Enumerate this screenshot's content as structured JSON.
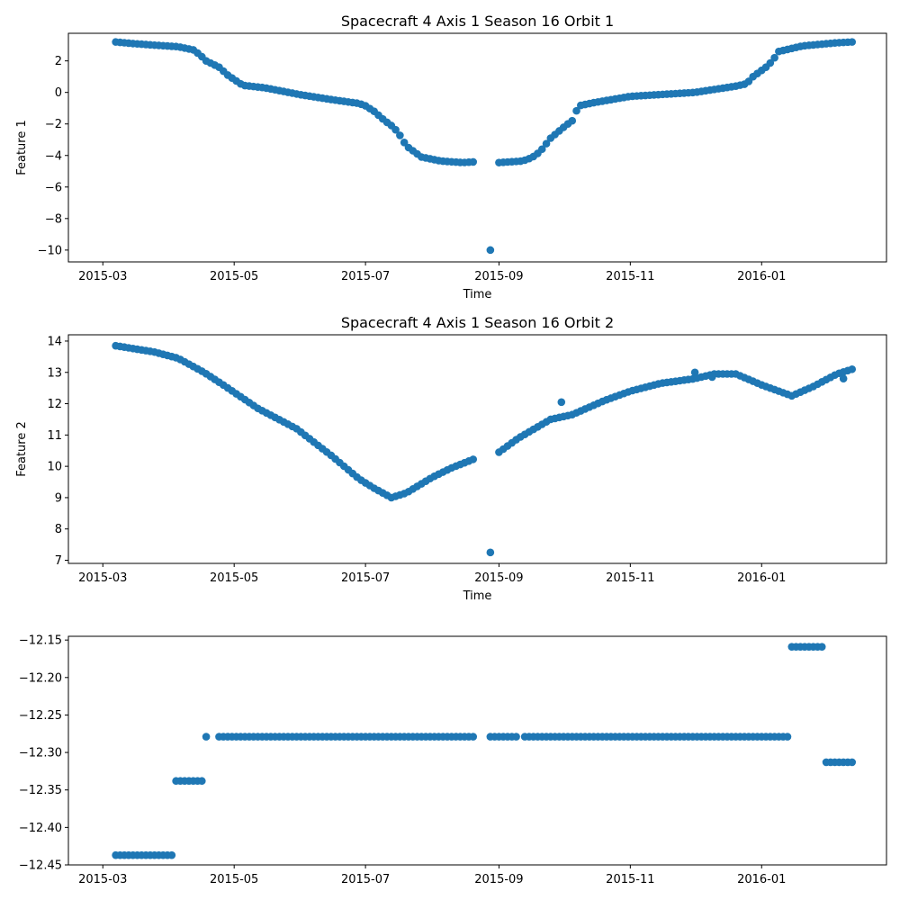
{
  "chart_data": [
    {
      "type": "scatter",
      "title": "Spacecraft 4 Axis 1 Season 16 Orbit 1",
      "xlabel": "Time",
      "ylabel": "Feature 1",
      "xlim": [
        "2015-02-13",
        "2016-02-28"
      ],
      "ylim": [
        -10.75,
        3.75
      ],
      "x_ticks": [
        "2015-03-01",
        "2015-05-01",
        "2015-07-01",
        "2015-09-01",
        "2015-11-01",
        "2016-01-01"
      ],
      "x_tick_labels": [
        "2015-03",
        "2015-05",
        "2015-07",
        "2015-09",
        "2015-11",
        "2016-01"
      ],
      "y_ticks": [
        2,
        0,
        -2,
        -4,
        -6,
        -8,
        -10
      ],
      "y_tick_labels": [
        "2",
        "0",
        "−2",
        "−4",
        "−6",
        "−8",
        "−10"
      ],
      "color": "#1f77b4",
      "series": [
        {
          "x_anchors": [
            "2015-03-07",
            "2015-03-15",
            "2015-03-25",
            "2015-04-05",
            "2015-04-12",
            "2015-04-15",
            "2015-04-18",
            "2015-04-24",
            "2015-04-28",
            "2015-05-05",
            "2015-05-15",
            "2015-06-01",
            "2015-06-15",
            "2015-06-28",
            "2015-07-01",
            "2015-07-05",
            "2015-07-10",
            "2015-07-13",
            "2015-07-16",
            "2015-07-20",
            "2015-07-27",
            "2015-08-05",
            "2015-08-15",
            "2015-08-21"
          ],
          "y_anchors": [
            3.2,
            3.1,
            3.0,
            2.9,
            2.7,
            2.4,
            2.0,
            1.6,
            1.1,
            0.45,
            0.3,
            -0.15,
            -0.45,
            -0.7,
            -0.85,
            -1.2,
            -1.8,
            -2.1,
            -2.5,
            -3.4,
            -4.1,
            -4.35,
            -4.45,
            -4.4
          ],
          "step_days": 2
        },
        {
          "x_anchors": [
            "2015-09-01",
            "2015-09-12",
            "2015-09-15",
            "2015-09-18",
            "2015-09-21",
            "2015-09-25",
            "2015-10-02",
            "2015-10-05",
            "2015-10-08",
            "2015-10-15",
            "2015-11-01",
            "2015-12-01",
            "2015-12-20",
            "2015-12-25",
            "2015-12-28",
            "2016-01-03",
            "2016-01-06",
            "2016-01-09",
            "2016-01-20",
            "2016-02-05",
            "2016-02-12"
          ],
          "y_anchors": [
            -4.45,
            -4.35,
            -4.2,
            -4.0,
            -3.6,
            -2.9,
            -2.1,
            -1.8,
            -0.85,
            -0.65,
            -0.25,
            0.0,
            0.4,
            0.55,
            1.0,
            1.6,
            2.0,
            2.6,
            2.95,
            3.15,
            3.2
          ],
          "step_days": 2
        },
        {
          "x": [
            "2015-08-28"
          ],
          "y": [
            -10.0
          ]
        }
      ]
    },
    {
      "type": "scatter",
      "title": "Spacecraft 4 Axis 1 Season 16 Orbit 2",
      "xlabel": "Time",
      "ylabel": "Feature 2",
      "xlim": [
        "2015-02-13",
        "2016-02-28"
      ],
      "ylim": [
        6.9,
        14.2
      ],
      "x_ticks": [
        "2015-03-01",
        "2015-05-01",
        "2015-07-01",
        "2015-09-01",
        "2015-11-01",
        "2016-01-01"
      ],
      "x_tick_labels": [
        "2015-03",
        "2015-05",
        "2015-07",
        "2015-09",
        "2015-11",
        "2016-01"
      ],
      "y_ticks": [
        14,
        13,
        12,
        11,
        10,
        9,
        8,
        7
      ],
      "y_tick_labels": [
        "14",
        "13",
        "12",
        "11",
        "10",
        "9",
        "8",
        "7"
      ],
      "color": "#1f77b4",
      "series": [
        {
          "x_anchors": [
            "2015-03-07",
            "2015-03-25",
            "2015-04-05",
            "2015-04-17",
            "2015-04-27",
            "2015-05-12",
            "2015-05-30",
            "2015-06-15",
            "2015-06-28",
            "2015-07-05",
            "2015-07-13",
            "2015-07-20",
            "2015-08-01",
            "2015-08-10",
            "2015-08-21"
          ],
          "y_anchors": [
            13.85,
            13.65,
            13.45,
            13.0,
            12.55,
            11.85,
            11.2,
            10.35,
            9.6,
            9.3,
            9.0,
            9.15,
            9.65,
            9.95,
            10.25
          ],
          "step_days": 2
        },
        {
          "x_anchors": [
            "2015-09-01",
            "2015-09-10",
            "2015-09-25",
            "2015-10-05",
            "2015-10-20",
            "2015-11-01",
            "2015-11-15",
            "2015-12-01",
            "2015-12-10",
            "2015-12-20",
            "2016-01-01",
            "2016-01-15",
            "2016-01-25",
            "2016-02-05",
            "2016-02-12"
          ],
          "y_anchors": [
            10.45,
            10.9,
            11.5,
            11.65,
            12.1,
            12.4,
            12.65,
            12.8,
            12.95,
            12.95,
            12.6,
            12.25,
            12.55,
            12.95,
            13.1
          ],
          "step_days": 2
        },
        {
          "x": [
            "2015-08-28",
            "2015-09-30",
            "2015-12-01",
            "2015-12-09",
            "2016-02-08"
          ],
          "y": [
            7.25,
            12.05,
            13.0,
            12.85,
            12.8
          ]
        }
      ]
    },
    {
      "type": "scatter",
      "title": "",
      "xlabel": "",
      "ylabel": "",
      "xlim": [
        "2015-02-13",
        "2016-02-28"
      ],
      "ylim": [
        -12.45,
        -12.145
      ],
      "x_ticks": [
        "2015-03-01",
        "2015-05-01",
        "2015-07-01",
        "2015-09-01",
        "2015-11-01",
        "2016-01-01"
      ],
      "x_tick_labels": [
        "2015-03",
        "2015-05",
        "2015-07",
        "2015-09",
        "2015-11",
        "2016-01"
      ],
      "y_ticks": [
        -12.15,
        -12.2,
        -12.25,
        -12.3,
        -12.35,
        -12.4,
        -12.45
      ],
      "y_tick_labels": [
        "−12.15",
        "−12.20",
        "−12.25",
        "−12.30",
        "−12.35",
        "−12.40",
        "−12.45"
      ],
      "color": "#1f77b4",
      "series": [
        {
          "x_range": [
            "2015-03-07",
            "2015-04-02"
          ],
          "step_days": 2,
          "y_const": -12.437
        },
        {
          "x_range": [
            "2015-04-04",
            "2015-04-16"
          ],
          "step_days": 2,
          "y_const": -12.338
        },
        {
          "x_range": [
            "2015-04-18",
            "2015-04-18"
          ],
          "step_days": 2,
          "y_const": -12.279
        },
        {
          "x_range": [
            "2015-04-24",
            "2015-08-21"
          ],
          "step_days": 2,
          "y_const": -12.279
        },
        {
          "x_range": [
            "2015-08-28",
            "2015-09-09"
          ],
          "step_days": 2,
          "y_const": -12.279
        },
        {
          "x_range": [
            "2015-09-13",
            "2016-01-13"
          ],
          "step_days": 2,
          "y_const": -12.279
        },
        {
          "x_range": [
            "2016-01-15",
            "2016-01-29"
          ],
          "step_days": 2,
          "y_const": -12.159
        },
        {
          "x_range": [
            "2016-01-31",
            "2016-02-12"
          ],
          "step_days": 2,
          "y_const": -12.313
        }
      ]
    }
  ]
}
